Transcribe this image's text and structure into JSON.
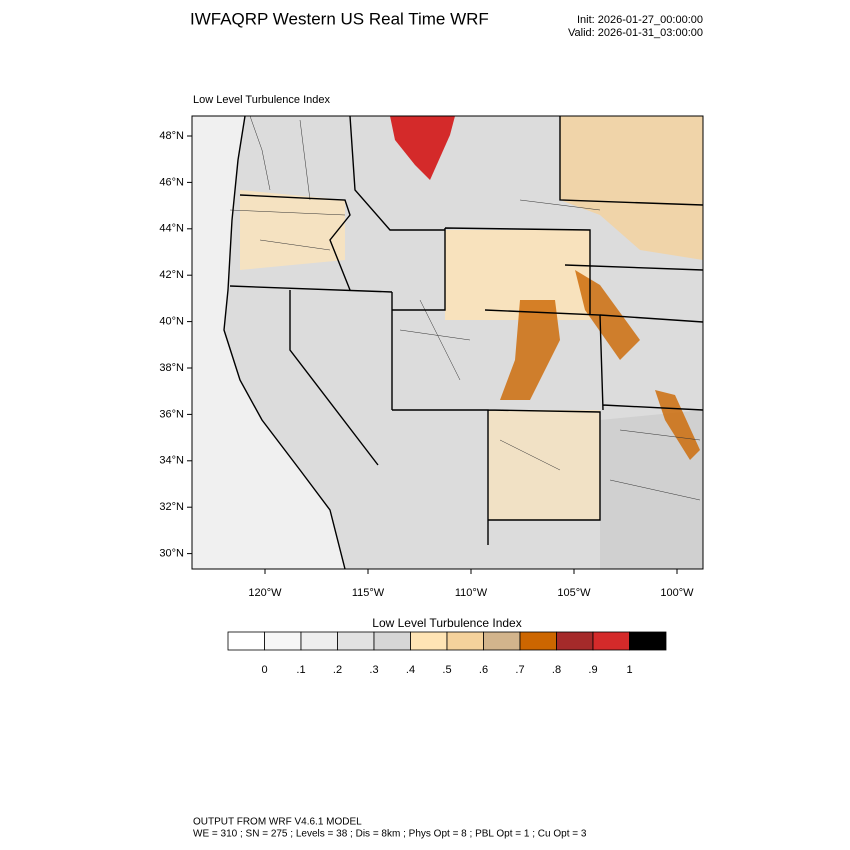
{
  "header": {
    "title": "IWFAQRP Western US Real Time WRF",
    "init": "Init: 2026-01-27_00:00:00",
    "valid": "Valid: 2026-01-31_03:00:00"
  },
  "map": {
    "title": "Low Level Turbulence Index",
    "lat_ticks": [
      {
        "value": 48,
        "label": "48°N"
      },
      {
        "value": 46,
        "label": "46°N"
      },
      {
        "value": 44,
        "label": "44°N"
      },
      {
        "value": 42,
        "label": "42°N"
      },
      {
        "value": 40,
        "label": "40°N"
      },
      {
        "value": 38,
        "label": "38°N"
      },
      {
        "value": 36,
        "label": "36°N"
      },
      {
        "value": 34,
        "label": "34°N"
      },
      {
        "value": 32,
        "label": "32°N"
      },
      {
        "value": 30,
        "label": "30°N"
      }
    ],
    "lon_ticks": [
      {
        "value": -120,
        "label": "120°W"
      },
      {
        "value": -115,
        "label": "115°W"
      },
      {
        "value": -110,
        "label": "110°W"
      },
      {
        "value": -105,
        "label": "105°W"
      },
      {
        "value": -100,
        "label": "100°W"
      }
    ]
  },
  "colorbar": {
    "title": "Low Level Turbulence Index",
    "colors": [
      "#ffffff",
      "#f7f7f7",
      "#eeeeee",
      "#e2e2e2",
      "#d6d6d6",
      "#ffe4b5",
      "#f5d29c",
      "#d2b48c",
      "#cc6600",
      "#a52a2a",
      "#d42a2a",
      "#000000"
    ],
    "levels": [
      {
        "value": 0,
        "label": "0"
      },
      {
        "value": 0.1,
        "label": ".1"
      },
      {
        "value": 0.2,
        "label": ".2"
      },
      {
        "value": 0.3,
        "label": ".3"
      },
      {
        "value": 0.4,
        "label": ".4"
      },
      {
        "value": 0.5,
        "label": ".5"
      },
      {
        "value": 0.6,
        "label": ".6"
      },
      {
        "value": 0.7,
        "label": ".7"
      },
      {
        "value": 0.8,
        "label": ".8"
      },
      {
        "value": 0.9,
        "label": ".9"
      },
      {
        "value": 1,
        "label": "1"
      }
    ]
  },
  "footer": {
    "line1": "OUTPUT FROM WRF V4.6.1 MODEL",
    "line2": "WE = 310 ; SN = 275 ; Levels = 38 ; Dis = 8km ; Phys Opt = 8 ; PBL Opt = 1 ; Cu Opt = 3"
  }
}
